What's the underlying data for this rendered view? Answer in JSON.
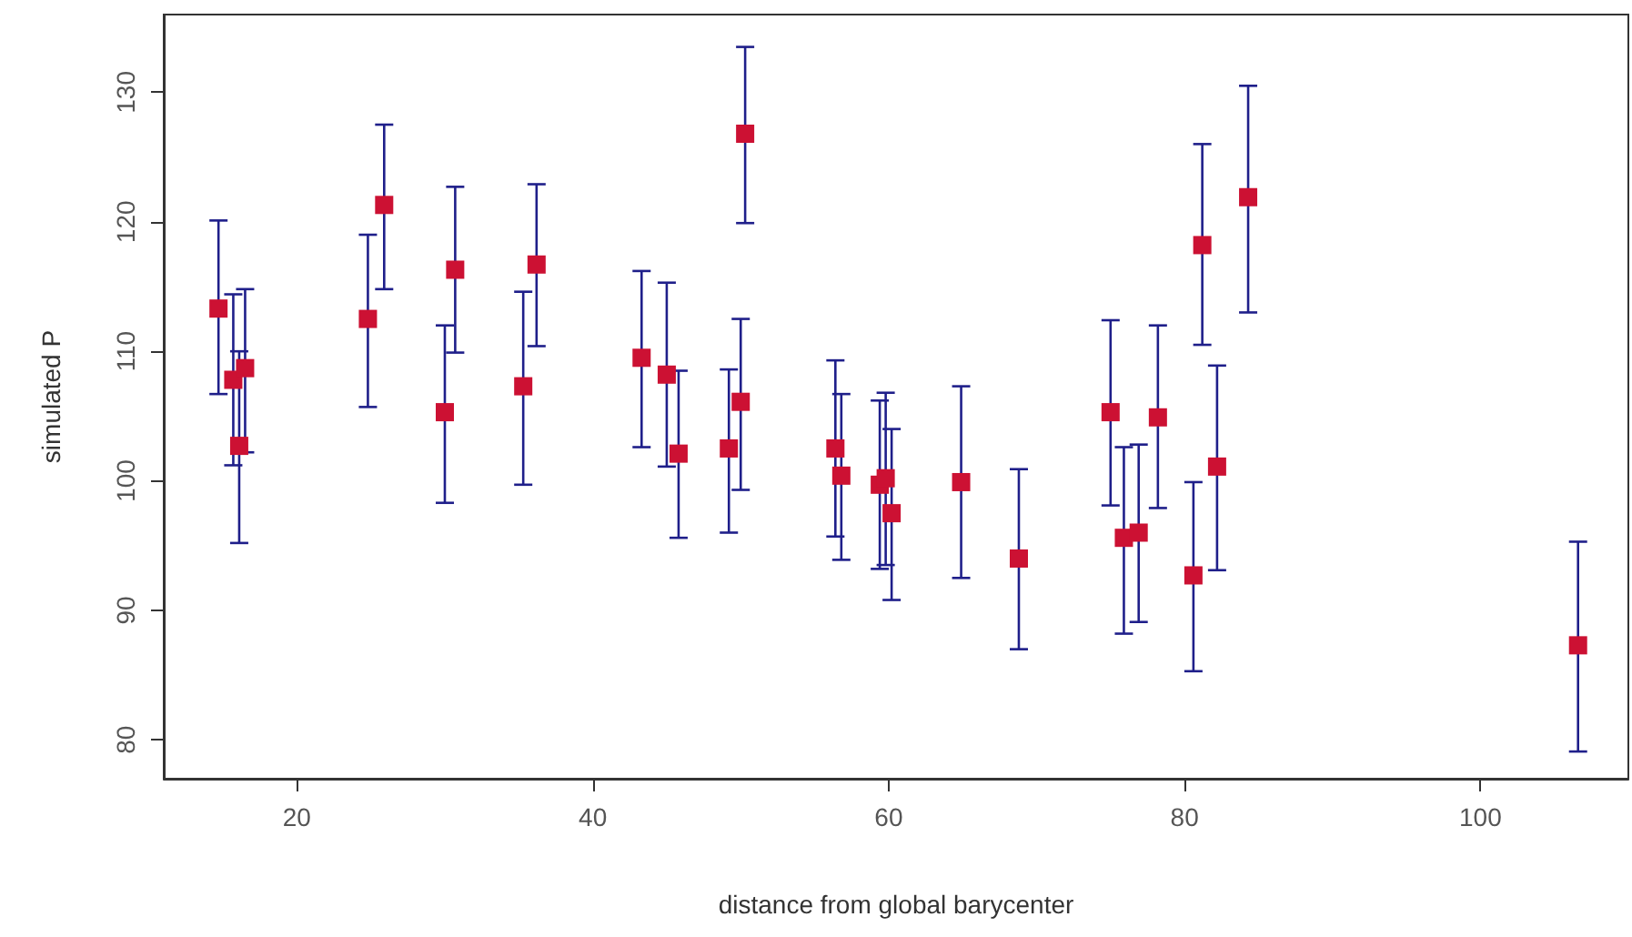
{
  "chart_data": {
    "type": "scatter",
    "xlabel": "distance from global barycenter",
    "ylabel": "simulated P",
    "x": [
      14.7,
      15.7,
      16.1,
      16.5,
      24.8,
      25.9,
      30.0,
      30.7,
      35.3,
      36.2,
      43.3,
      45.0,
      45.8,
      49.2,
      50.0,
      50.3,
      56.4,
      56.8,
      59.4,
      59.8,
      60.2,
      64.9,
      68.8,
      75.0,
      75.9,
      76.9,
      78.2,
      80.6,
      81.2,
      82.2,
      84.3,
      106.6
    ],
    "series": [
      {
        "color": "#cc1133",
        "values": [
          113.3,
          107.8,
          102.7,
          108.7,
          112.5,
          121.3,
          105.3,
          116.3,
          107.3,
          116.7,
          109.5,
          108.2,
          102.1,
          102.5,
          106.1,
          126.8,
          102.5,
          100.4,
          99.7,
          100.2,
          97.5,
          99.9,
          94.0,
          105.3,
          95.6,
          96.0,
          104.9,
          92.7,
          118.2,
          101.1,
          121.9,
          87.3
        ],
        "errors": [
          [
            106.7,
            120.1
          ],
          [
            101.2,
            114.4
          ],
          [
            95.2,
            110.0
          ],
          [
            102.2,
            114.8
          ],
          [
            105.7,
            119.0
          ],
          [
            114.8,
            127.5
          ],
          [
            98.3,
            112.0
          ],
          [
            109.9,
            122.7
          ],
          [
            99.7,
            114.6
          ],
          [
            110.4,
            122.9
          ],
          [
            102.6,
            116.2
          ],
          [
            101.1,
            115.3
          ],
          [
            95.6,
            108.5
          ],
          [
            96.0,
            108.6
          ],
          [
            99.3,
            112.5
          ],
          [
            119.9,
            133.5
          ],
          [
            95.7,
            109.3
          ],
          [
            93.9,
            106.7
          ],
          [
            93.2,
            106.2
          ],
          [
            93.5,
            106.8
          ],
          [
            90.8,
            104.0
          ],
          [
            92.5,
            107.3
          ],
          [
            87.0,
            100.9
          ],
          [
            98.1,
            112.4
          ],
          [
            88.2,
            102.6
          ],
          [
            89.1,
            102.8
          ],
          [
            97.9,
            112.0
          ],
          [
            85.3,
            99.9
          ],
          [
            110.5,
            126.0
          ],
          [
            93.1,
            108.9
          ],
          [
            113.0,
            130.5
          ],
          [
            79.1,
            95.3
          ]
        ]
      }
    ],
    "xlim": [
      11,
      110
    ],
    "xticks": [
      20,
      40,
      60,
      80,
      100
    ],
    "ylim": [
      77,
      136
    ],
    "yticks": [
      80,
      90,
      100,
      110,
      120,
      130
    ],
    "marker": "square"
  }
}
